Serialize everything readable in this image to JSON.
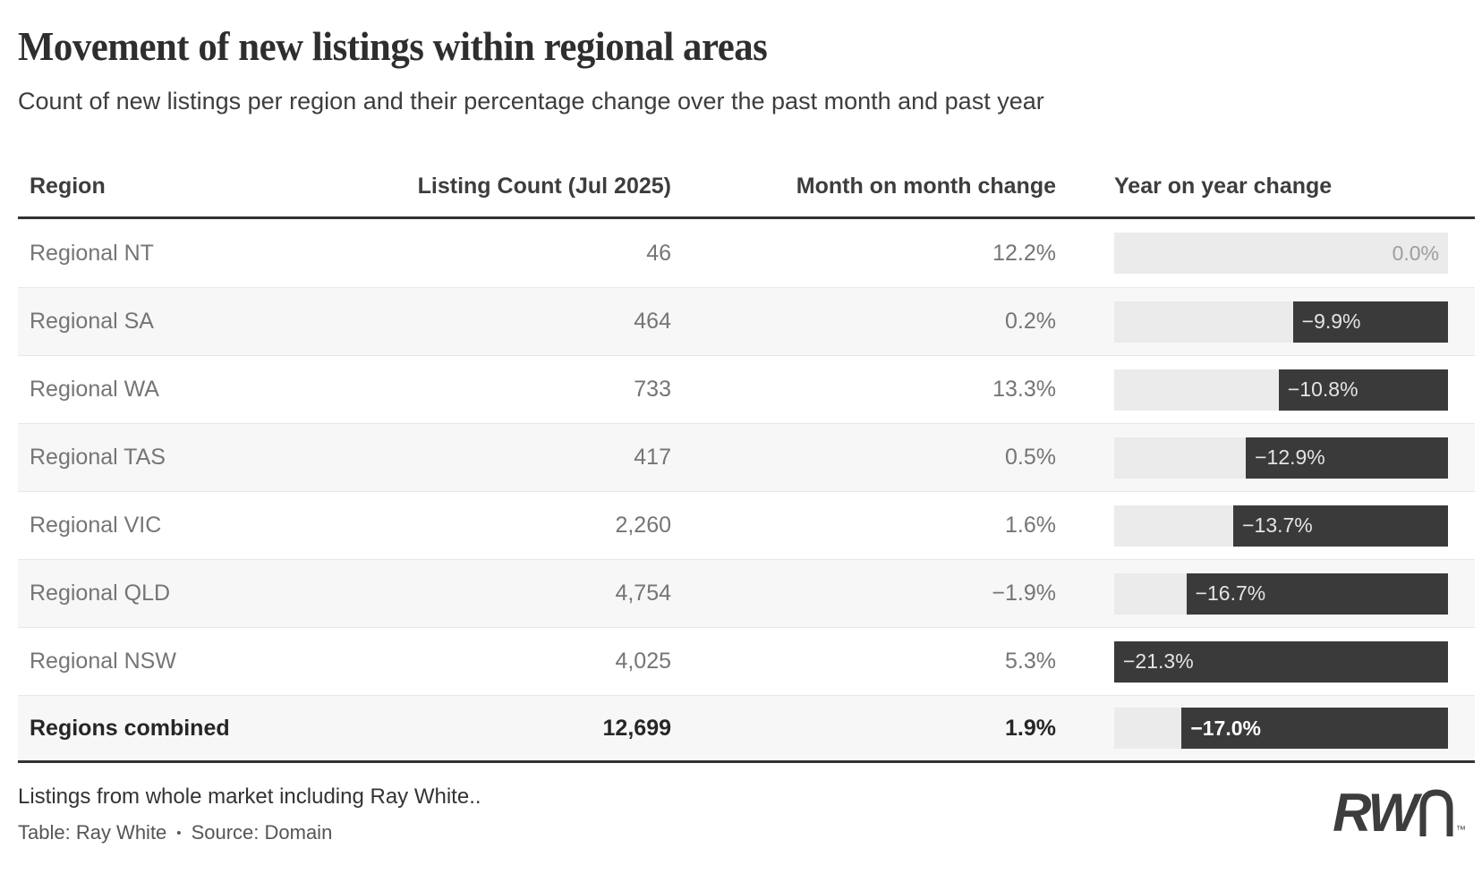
{
  "header": {
    "title": "Movement of new listings within regional areas",
    "subtitle": "Count of new listings per region and their percentage change over the past month and past year"
  },
  "chart_data": {
    "type": "table",
    "columns": [
      "Region",
      "Listing Count (Jul 2025)",
      "Month on month change",
      "Year on year change"
    ],
    "bar_column": "Year on year change",
    "bar_style": "right-anchored dark bar, width proportional to absolute percentage",
    "bar_scale_max_abs_pct": 21.3,
    "rows": [
      {
        "region": "Regional NT",
        "listing_count": "46",
        "mom_change": "12.2%",
        "yoy_label": "0.0%",
        "yoy_value_pct": 0.0
      },
      {
        "region": "Regional SA",
        "listing_count": "464",
        "mom_change": "0.2%",
        "yoy_label": "−9.9%",
        "yoy_value_pct": -9.9
      },
      {
        "region": "Regional WA",
        "listing_count": "733",
        "mom_change": "13.3%",
        "yoy_label": "−10.8%",
        "yoy_value_pct": -10.8
      },
      {
        "region": "Regional TAS",
        "listing_count": "417",
        "mom_change": "0.5%",
        "yoy_label": "−12.9%",
        "yoy_value_pct": -12.9
      },
      {
        "region": "Regional VIC",
        "listing_count": "2,260",
        "mom_change": "1.6%",
        "yoy_label": "−13.7%",
        "yoy_value_pct": -13.7
      },
      {
        "region": "Regional QLD",
        "listing_count": "4,754",
        "mom_change": "−1.9%",
        "yoy_label": "−16.7%",
        "yoy_value_pct": -16.7
      },
      {
        "region": "Regional NSW",
        "listing_count": "4,025",
        "mom_change": "5.3%",
        "yoy_label": "−21.3%",
        "yoy_value_pct": -21.3
      }
    ],
    "total_row": {
      "region": "Regions combined",
      "listing_count": "12,699",
      "mom_change": "1.9%",
      "yoy_label": "−17.0%",
      "yoy_value_pct": -17.0
    }
  },
  "footer": {
    "note": "Listings from whole market including Ray White..",
    "credit": "Table: Ray White",
    "separator": "•",
    "source": "Source: Domain",
    "logo_text": "RW",
    "logo_tm": "™"
  },
  "colors": {
    "bar_dark": "#3a3a3a",
    "bar_track": "#ebebeb",
    "row_alt_bg": "#f7f7f7",
    "rule_dark": "#333333",
    "bar_label_light": "#e4e4e4",
    "zero_label_gray": "#9e9e9e"
  }
}
